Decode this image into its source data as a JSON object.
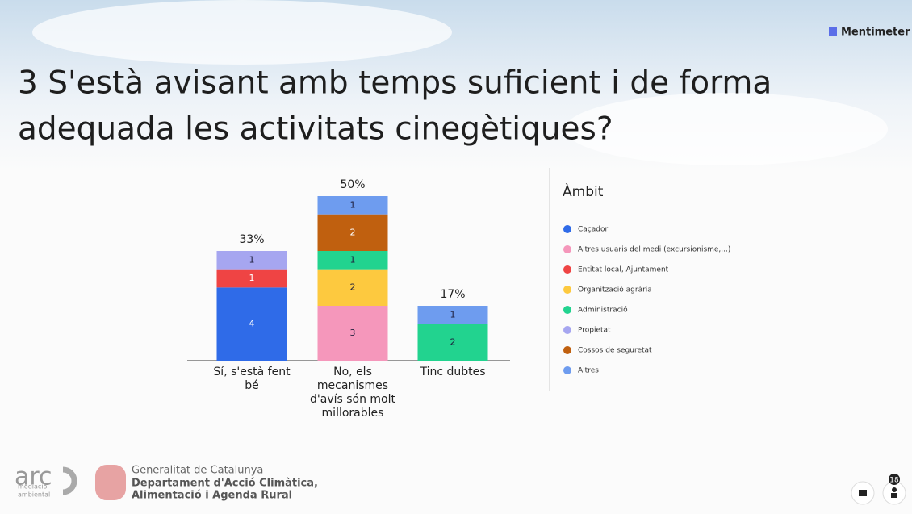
{
  "brand": "Mentimeter",
  "title_lines": [
    "3 S'està avisant amb temps suficient i de forma",
    "adequada les activitats cinegètiques?"
  ],
  "footer": {
    "arc": "arc",
    "arc_sub": [
      "mediació",
      "ambiental"
    ],
    "gov_lines": [
      "Generalitat de Catalunya",
      "Departament d'Acció Climàtica,",
      "Alimentació i Agenda Rural"
    ]
  },
  "participants": "18",
  "chart_data": {
    "type": "stacked-bar",
    "categories": [
      "Sí, s'està fent bé",
      "No, els mecanismes d'avís són molt millorables",
      "Tinc dubtes"
    ],
    "share_labels": [
      "33%",
      "50%",
      "17%"
    ],
    "legend_title": "Àmbit",
    "ylim": [
      0,
      9
    ],
    "series": [
      {
        "name": "Caçador",
        "color": "#2f6be8",
        "values": [
          4,
          null,
          null
        ]
      },
      {
        "name": "Altres usuaris del medi (excursionisme,...)",
        "color": "#f597bb",
        "values": [
          null,
          3,
          null
        ]
      },
      {
        "name": "Entitat local, Ajuntament",
        "color": "#ef4444",
        "values": [
          1,
          null,
          null
        ]
      },
      {
        "name": "Organització agrària",
        "color": "#fdc93f",
        "values": [
          null,
          2,
          null
        ]
      },
      {
        "name": "Administració",
        "color": "#22d38f",
        "values": [
          null,
          1,
          2
        ]
      },
      {
        "name": "Propietat",
        "color": "#a6a6f0",
        "values": [
          1,
          null,
          null
        ]
      },
      {
        "name": "Cossos de seguretat",
        "color": "#c0600f",
        "values": [
          null,
          2,
          null
        ]
      },
      {
        "name": "Altres",
        "color": "#6e9cef",
        "values": [
          null,
          1,
          1
        ]
      }
    ]
  }
}
